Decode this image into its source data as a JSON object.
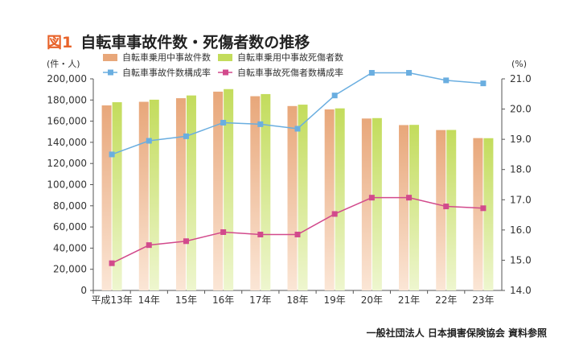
{
  "figure": {
    "number": "図1",
    "title": "自転車事故件数・死傷者数の推移",
    "source": "一般社団法人 日本損害保険協会 資料参照"
  },
  "chart_data": {
    "type": "bar",
    "categories": [
      "平成13年",
      "14年",
      "15年",
      "16年",
      "17年",
      "18年",
      "19年",
      "20年",
      "21年",
      "22年",
      "23年"
    ],
    "y_left": {
      "label": "(件・人)",
      "min": 0,
      "max": 200000,
      "step": 20000,
      "ticks": [
        "0",
        "20,000",
        "40,000",
        "60,000",
        "80,000",
        "100,000",
        "120,000",
        "140,000",
        "160,000",
        "180,000",
        "200,000"
      ]
    },
    "y_right": {
      "label": "(%)",
      "min": 14.0,
      "max": 21.0,
      "step": 1.0,
      "ticks": [
        "14.0",
        "15.0",
        "16.0",
        "17.0",
        "18.0",
        "19.0",
        "20.0",
        "21.0"
      ]
    },
    "grid": false,
    "legend_position": "top",
    "bar_series": [
      {
        "name": "自転車乗用中事故件数",
        "color": "#e8a77a",
        "color_light": "#fbe6d6",
        "values": [
          174900,
          178300,
          181700,
          187900,
          183600,
          174300,
          171100,
          162500,
          156300,
          151600,
          144000
        ]
      },
      {
        "name": "自転車乗用中事故死傷者数",
        "color": "#c3dc5c",
        "color_light": "#eef6cf",
        "values": [
          177900,
          180300,
          184300,
          190300,
          185600,
          175600,
          172100,
          162900,
          156500,
          151700,
          143900
        ]
      }
    ],
    "line_series": [
      {
        "name": "自転車事故件数構成率",
        "color": "#6aaee0",
        "marker": "square",
        "values": [
          18.5,
          18.95,
          19.1,
          19.55,
          19.5,
          19.35,
          20.45,
          21.2,
          21.2,
          20.95,
          20.85
        ]
      },
      {
        "name": "自転車事故死傷者数構成率",
        "color": "#d24a8c",
        "marker": "square",
        "values": [
          14.9,
          15.5,
          15.63,
          15.93,
          15.85,
          15.85,
          16.53,
          17.07,
          17.07,
          16.78,
          16.72
        ]
      }
    ]
  }
}
